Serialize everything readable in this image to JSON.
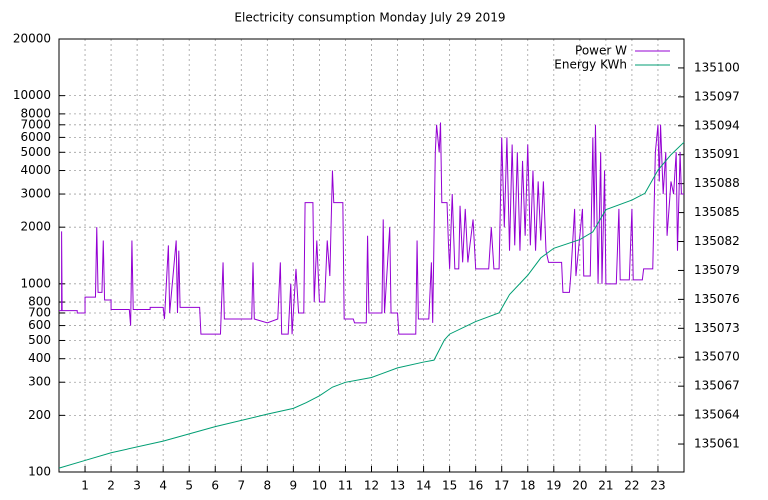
{
  "chart_data": {
    "type": "line",
    "title": "Electricity consumption Monday July 29 2019",
    "xlim": [
      0,
      24
    ],
    "xticks": [
      1,
      2,
      3,
      4,
      5,
      6,
      7,
      8,
      9,
      10,
      11,
      12,
      13,
      14,
      15,
      16,
      17,
      18,
      19,
      20,
      21,
      22,
      23
    ],
    "ylim": [
      100,
      20000
    ],
    "yticks": [
      100,
      200,
      300,
      400,
      500,
      600,
      700,
      800,
      1000,
      2000,
      3000,
      4000,
      5000,
      6000,
      7000,
      8000,
      10000,
      20000
    ],
    "log_y": true,
    "y2lim": [
      135058.1,
      135103
    ],
    "y2ticks": [
      135061,
      135064,
      135067,
      135070,
      135073,
      135076,
      135079,
      135082,
      135085,
      135088,
      135091,
      135094,
      135097,
      135100
    ],
    "grid": true,
    "legend": "top-right",
    "series": [
      {
        "name": "Power W",
        "color": "#9400d3",
        "axis": "y",
        "x": [
          0,
          0.1,
          0.1,
          0.12,
          0.7,
          0.7,
          1.0,
          1.0,
          1.4,
          1.45,
          1.5,
          1.65,
          1.7,
          1.75,
          2.0,
          2.0,
          2.7,
          2.75,
          2.8,
          2.85,
          3.5,
          3.5,
          4.0,
          4.05,
          4.2,
          4.25,
          4.5,
          4.55,
          4.6,
          4.65,
          5.4,
          5.45,
          6.2,
          6.3,
          6.35,
          7.4,
          7.45,
          7.5,
          8.0,
          8.4,
          8.5,
          8.55,
          8.8,
          8.9,
          8.95,
          9.1,
          9.2,
          9.4,
          9.45,
          9.75,
          9.8,
          9.9,
          10.0,
          10.2,
          10.3,
          10.4,
          10.5,
          10.55,
          10.9,
          10.95,
          11.3,
          11.35,
          11.8,
          11.85,
          11.9,
          12.4,
          12.45,
          12.5,
          12.7,
          12.75,
          13.0,
          13.05,
          13.7,
          13.75,
          13.8,
          14.2,
          14.3,
          14.35,
          14.45,
          14.5,
          14.6,
          14.65,
          14.7,
          14.9,
          14.95,
          15.0,
          15.1,
          15.2,
          15.35,
          15.4,
          15.5,
          15.6,
          15.7,
          15.9,
          16.0,
          16.5,
          16.6,
          16.7,
          16.9,
          17.0,
          17.1,
          17.2,
          17.3,
          17.4,
          17.5,
          17.6,
          17.7,
          17.8,
          17.9,
          18.0,
          18.1,
          18.2,
          18.3,
          18.4,
          18.5,
          18.6,
          18.7,
          18.8,
          19.3,
          19.35,
          19.6,
          19.65,
          19.8,
          19.85,
          20.1,
          20.15,
          20.4,
          20.5,
          20.55,
          20.6,
          20.7,
          20.8,
          20.85,
          20.95,
          21.0,
          21.4,
          21.5,
          21.55,
          21.9,
          22.0,
          22.05,
          22.4,
          22.45,
          22.8,
          22.9,
          23.0,
          23.05,
          23.1,
          23.2,
          23.3,
          23.35,
          23.5,
          23.6,
          23.7,
          23.75,
          23.85,
          23.9,
          24.0
        ],
        "values": [
          720,
          720,
          1900,
          720,
          720,
          700,
          700,
          850,
          850,
          2000,
          900,
          900,
          1700,
          820,
          820,
          730,
          730,
          600,
          1700,
          730,
          730,
          750,
          750,
          650,
          1600,
          700,
          1700,
          700,
          1500,
          750,
          750,
          540,
          540,
          1300,
          650,
          650,
          1300,
          650,
          620,
          650,
          1300,
          540,
          540,
          1000,
          540,
          1200,
          700,
          700,
          2700,
          2700,
          800,
          1700,
          800,
          800,
          1700,
          1100,
          4000,
          2700,
          2700,
          650,
          650,
          620,
          620,
          1800,
          700,
          700,
          2200,
          700,
          2000,
          700,
          700,
          540,
          540,
          1700,
          650,
          650,
          1300,
          620,
          5000,
          7000,
          5000,
          7200,
          2700,
          2700,
          1700,
          1200,
          3000,
          1200,
          1200,
          2600,
          1300,
          2500,
          1300,
          2200,
          1200,
          1200,
          2000,
          1200,
          1200,
          6000,
          2000,
          6000,
          1500,
          5500,
          1600,
          5000,
          1500,
          4500,
          1800,
          5500,
          1600,
          4000,
          1500,
          3500,
          1700,
          3500,
          1500,
          1300,
          1300,
          900,
          900,
          1100,
          2500,
          1100,
          2500,
          1100,
          1100,
          6000,
          2000,
          7000,
          1000,
          5000,
          1000,
          4000,
          1000,
          1000,
          2500,
          1050,
          1050,
          2500,
          1050,
          1050,
          1200,
          1200,
          5000,
          7000,
          3500,
          7000,
          3000,
          5000,
          1800,
          3500,
          3000,
          5000,
          1500,
          5000,
          3000,
          3000
        ]
      },
      {
        "name": "Energy KWh",
        "color": "#009e73",
        "axis": "y2",
        "x": [
          0,
          1,
          2,
          4,
          6,
          8,
          9,
          9.5,
          10,
          10.5,
          11,
          12,
          13,
          14,
          14.4,
          14.8,
          15,
          16,
          16.9,
          17.3,
          18,
          18.5,
          19,
          20,
          20.5,
          21,
          22,
          22.5,
          23,
          23.5,
          24
        ],
        "values": [
          135058.5,
          135059.3,
          135060.1,
          135061.3,
          135062.8,
          135064.1,
          135064.7,
          135065.3,
          135066.0,
          135066.9,
          135067.4,
          135067.9,
          135068.9,
          135069.5,
          135069.7,
          135071.8,
          135072.4,
          135073.7,
          135074.6,
          135076.5,
          135078.5,
          135080.3,
          135081.3,
          135082.2,
          135083.0,
          135085.3,
          135086.3,
          135087.0,
          135089.4,
          135091.0,
          135092.3
        ]
      }
    ]
  }
}
